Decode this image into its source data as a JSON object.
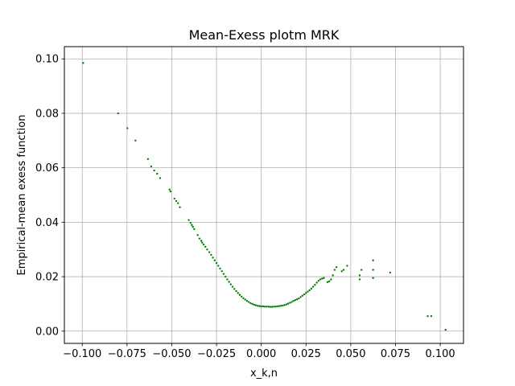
{
  "chart_data": {
    "type": "scatter",
    "title": "Mean-Exess plotm MRK",
    "xlabel": "x_k,n",
    "ylabel": "Empirical-mean exess function",
    "xlim": [
      -0.11,
      0.113
    ],
    "ylim": [
      -0.0045,
      0.1045
    ],
    "xticks": [
      -0.1,
      -0.075,
      -0.05,
      -0.025,
      0.0,
      0.025,
      0.05,
      0.075,
      0.1
    ],
    "xtick_labels": [
      "−0.100",
      "−0.075",
      "−0.050",
      "−0.025",
      "0.000",
      "0.025",
      "0.050",
      "0.075",
      "0.100"
    ],
    "yticks": [
      0.0,
      0.02,
      0.04,
      0.06,
      0.08,
      0.1
    ],
    "ytick_labels": [
      "0.00",
      "0.02",
      "0.04",
      "0.06",
      "0.08",
      "0.10"
    ],
    "grid": true,
    "marker_color": "#008000",
    "grid_color": "#b0b0b0",
    "series": [
      {
        "points": [
          [
            -0.0995,
            0.0985
          ],
          [
            -0.08,
            0.08
          ],
          [
            -0.0748,
            0.0745
          ],
          [
            -0.0703,
            0.07
          ],
          [
            -0.0633,
            0.0632
          ],
          [
            -0.0615,
            0.0605
          ],
          [
            -0.0598,
            0.059
          ],
          [
            -0.0582,
            0.0578
          ],
          [
            -0.0565,
            0.0562
          ],
          [
            -0.0512,
            0.052
          ],
          [
            -0.0507,
            0.0513
          ],
          [
            -0.0485,
            0.0487
          ],
          [
            -0.0475,
            0.0478
          ],
          [
            -0.0465,
            0.047
          ],
          [
            -0.0455,
            0.0455
          ],
          [
            -0.0405,
            0.0408
          ],
          [
            -0.0395,
            0.0398
          ],
          [
            -0.0388,
            0.039
          ],
          [
            -0.0382,
            0.0383
          ],
          [
            -0.0375,
            0.0375
          ],
          [
            -0.0355,
            0.0353
          ],
          [
            -0.0345,
            0.034
          ],
          [
            -0.0335,
            0.0332
          ],
          [
            -0.033,
            0.0325
          ],
          [
            -0.0322,
            0.0318
          ],
          [
            -0.0312,
            0.031
          ],
          [
            -0.0302,
            0.03
          ],
          [
            -0.029,
            0.029
          ],
          [
            -0.028,
            0.028
          ],
          [
            -0.027,
            0.027
          ],
          [
            -0.026,
            0.026
          ],
          [
            -0.025,
            0.025
          ],
          [
            -0.024,
            0.024
          ],
          [
            -0.023,
            0.023
          ],
          [
            -0.022,
            0.022
          ],
          [
            -0.021,
            0.021
          ],
          [
            -0.02,
            0.02
          ],
          [
            -0.019,
            0.019
          ],
          [
            -0.018,
            0.0181
          ],
          [
            -0.017,
            0.0172
          ],
          [
            -0.016,
            0.0163
          ],
          [
            -0.015,
            0.0155
          ],
          [
            -0.014,
            0.0147
          ],
          [
            -0.013,
            0.014
          ],
          [
            -0.012,
            0.0133
          ],
          [
            -0.011,
            0.0127
          ],
          [
            -0.01,
            0.0121
          ],
          [
            -0.009,
            0.0116
          ],
          [
            -0.008,
            0.0111
          ],
          [
            -0.007,
            0.0107
          ],
          [
            -0.006,
            0.0103
          ],
          [
            -0.005,
            0.01
          ],
          [
            -0.004,
            0.0097
          ],
          [
            -0.003,
            0.0095
          ],
          [
            -0.002,
            0.0093
          ],
          [
            -0.001,
            0.0092
          ],
          [
            0.0,
            0.0091
          ],
          [
            0.001,
            0.0091
          ],
          [
            0.002,
            0.009
          ],
          [
            0.003,
            0.009
          ],
          [
            0.004,
            0.009
          ],
          [
            0.005,
            0.0089
          ],
          [
            0.006,
            0.0089
          ],
          [
            0.007,
            0.009
          ],
          [
            0.008,
            0.009
          ],
          [
            0.009,
            0.0091
          ],
          [
            0.01,
            0.0092
          ],
          [
            0.011,
            0.0093
          ],
          [
            0.012,
            0.0094
          ],
          [
            0.013,
            0.0096
          ],
          [
            0.014,
            0.0098
          ],
          [
            0.015,
            0.0101
          ],
          [
            0.016,
            0.0104
          ],
          [
            0.017,
            0.0107
          ],
          [
            0.018,
            0.0111
          ],
          [
            0.019,
            0.0114
          ],
          [
            0.02,
            0.0117
          ],
          [
            0.021,
            0.012
          ],
          [
            0.022,
            0.0125
          ],
          [
            0.023,
            0.013
          ],
          [
            0.024,
            0.0135
          ],
          [
            0.025,
            0.014
          ],
          [
            0.026,
            0.0145
          ],
          [
            0.027,
            0.015
          ],
          [
            0.028,
            0.0156
          ],
          [
            0.029,
            0.0163
          ],
          [
            0.03,
            0.017
          ],
          [
            0.031,
            0.0178
          ],
          [
            0.032,
            0.0185
          ],
          [
            0.033,
            0.019
          ],
          [
            0.034,
            0.0193
          ],
          [
            0.035,
            0.0195
          ],
          [
            0.037,
            0.018
          ],
          [
            0.038,
            0.0183
          ],
          [
            0.039,
            0.019
          ],
          [
            0.04,
            0.0205
          ],
          [
            0.041,
            0.0225
          ],
          [
            0.042,
            0.0235
          ],
          [
            0.045,
            0.022
          ],
          [
            0.046,
            0.0225
          ],
          [
            0.048,
            0.024
          ],
          [
            0.055,
            0.019
          ],
          [
            0.055,
            0.0205
          ],
          [
            0.056,
            0.0225
          ],
          [
            0.0625,
            0.0195
          ],
          [
            0.0625,
            0.0225
          ],
          [
            0.0625,
            0.026
          ],
          [
            0.072,
            0.0215
          ],
          [
            0.093,
            0.0055
          ],
          [
            0.095,
            0.0055
          ],
          [
            0.103,
            0.0005
          ]
        ]
      }
    ]
  }
}
